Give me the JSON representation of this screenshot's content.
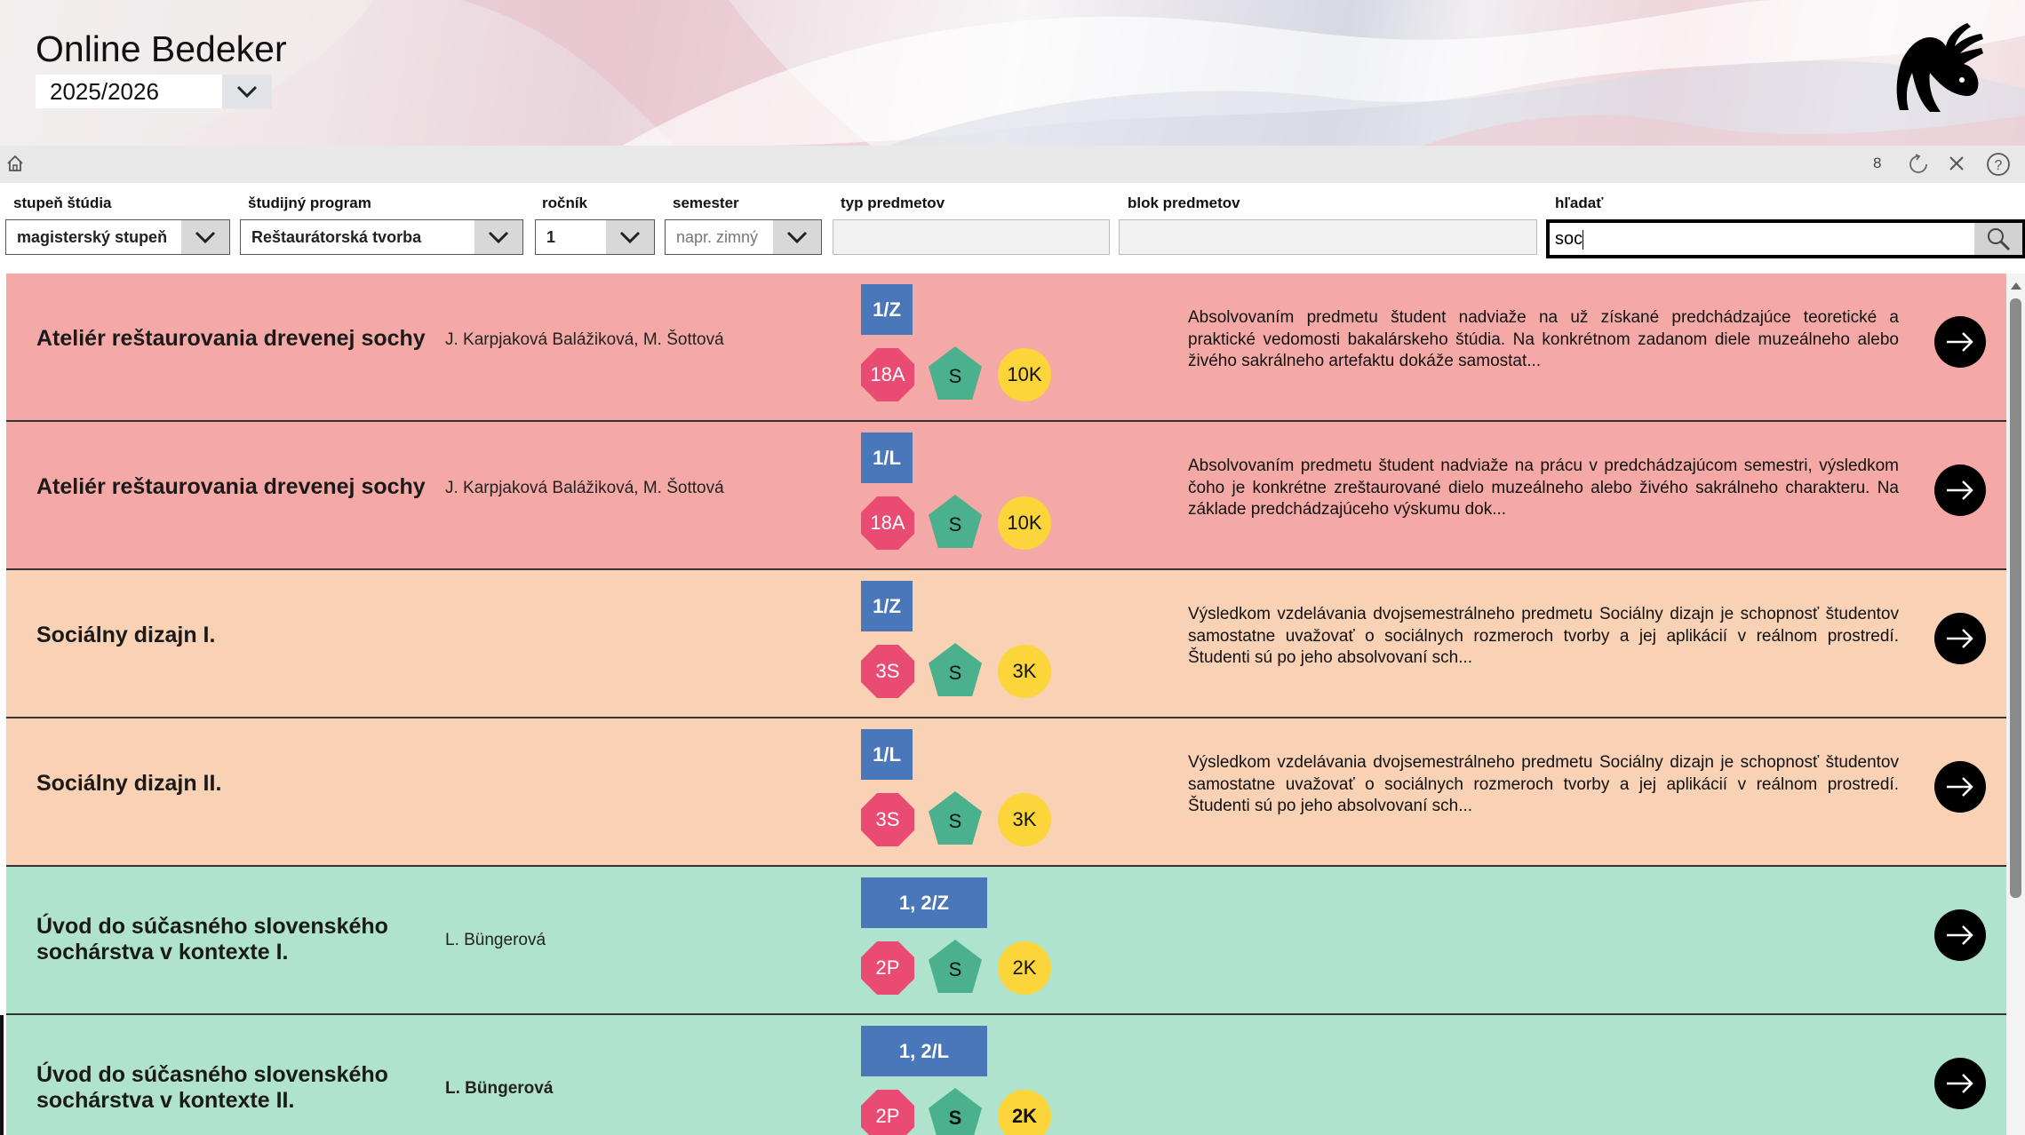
{
  "header": {
    "title": "Online Bedeker",
    "year": "2025/2026"
  },
  "toolbar": {
    "result_count": "8"
  },
  "filters": {
    "level": {
      "label": "stupeň štúdia",
      "value": "magisterský stupeň"
    },
    "program": {
      "label": "študijný program",
      "value": "Reštaurátorská tvorba"
    },
    "year": {
      "label": "ročník",
      "value": "1"
    },
    "semester": {
      "label": "semester",
      "placeholder": "napr. zimný"
    },
    "type": {
      "label": "typ predmetov",
      "value": ""
    },
    "block": {
      "label": "blok predmetov",
      "value": ""
    },
    "search": {
      "label": "hľadať",
      "value": "soc"
    }
  },
  "colors": {
    "row_red": "#f5a9a7",
    "row_peach": "#f9d1b5",
    "row_mint": "#b0e3cd",
    "semester_badge": "#4a76ba",
    "octagon_badge": "#e94b73",
    "pentagon_badge": "#4ab08d",
    "circle_badge": "#fbd53a"
  },
  "courses": [
    {
      "title": "Ateliér reštaurovania drevenej sochy",
      "teacher": "J. Karpjaková Balážiková, M. Šottová",
      "semester": "1/Z",
      "hours": "18A",
      "type": "S",
      "credits": "10K",
      "description": "Absolvovaním predmetu študent nadviaže na už získané predchádzajúce teoretické a praktické vedomosti bakalárskeho štúdia. Na konkrétnom zadanom diele muzeálneho alebo živého sakrálneho artefaktu dokáže samostat..."
    },
    {
      "title": "Ateliér reštaurovania drevenej sochy",
      "teacher": "J. Karpjaková Balážiková, M. Šottová",
      "semester": "1/L",
      "hours": "18A",
      "type": "S",
      "credits": "10K",
      "description": "Absolvovaním predmetu študent nadviaže na prácu v predchádzajúcom semestri, výsledkom čoho je konkrétne zreštaurované dielo muzeálneho alebo živého sakrálneho charakteru. Na základe predchádzajúceho výskumu dok..."
    },
    {
      "title": "Sociálny dizajn I.",
      "teacher": "",
      "semester": "1/Z",
      "hours": "3S",
      "type": "S",
      "credits": "3K",
      "description": "Výsledkom vzdelávania dvojsemestrálneho predmetu Sociálny dizajn je schopnosť študentov samostatne uvažovať o sociálnych rozmeroch tvorby a jej aplikácií v reálnom prostredí. Študenti sú po jeho absolvovaní sch..."
    },
    {
      "title": "Sociálny dizajn II.",
      "teacher": "",
      "semester": "1/L",
      "hours": "3S",
      "type": "S",
      "credits": "3K",
      "description": "Výsledkom vzdelávania dvojsemestrálneho predmetu Sociálny dizajn je schopnosť študentov samostatne uvažovať o sociálnych rozmeroch tvorby a jej aplikácií v reálnom prostredí. Študenti sú po jeho absolvovaní sch..."
    },
    {
      "title": "Úvod do súčasného slovenského sochárstva v kontexte I.",
      "teacher": "L. Büngerová",
      "semester": "1, 2/Z",
      "hours": "2P",
      "type": "S",
      "credits": "2K",
      "description": ""
    },
    {
      "title": "Úvod do súčasného slovenského sochárstva v kontexte II.",
      "teacher": "L. Büngerová",
      "semester": "1, 2/L",
      "hours": "2P",
      "type": "S",
      "credits": "2K",
      "description": ""
    }
  ]
}
